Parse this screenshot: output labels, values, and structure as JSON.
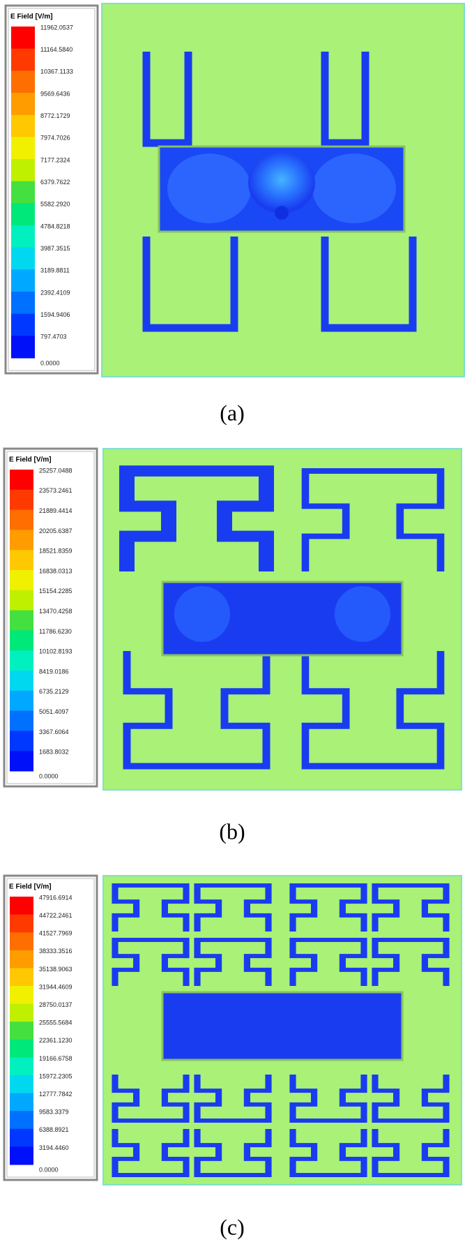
{
  "panels": [
    {
      "legend": {
        "title": "E Field [V/m]",
        "labels": [
          "11962.0537",
          "11164.5840",
          "10367.1133",
          "9569.6436",
          "8772.1729",
          "7974.7026",
          "7177.2324",
          "6379.7622",
          "5582.2920",
          "4784.8218",
          "3987.3515",
          "3189.8811",
          "2392.4109",
          "1594.9406",
          "797.4703",
          "0.0000"
        ]
      },
      "caption": "(a)"
    },
    {
      "legend": {
        "title": "E Field [V/m]",
        "labels": [
          "25257.0488",
          "23573.2461",
          "21889.4414",
          "20205.6387",
          "18521.8359",
          "16838.0313",
          "15154.2285",
          "13470.4258",
          "11786.6230",
          "10102.8193",
          "8419.0186",
          "6735.2129",
          "5051.4097",
          "3367.6064",
          "1683.8032",
          "0.0000"
        ]
      },
      "caption": "(b)"
    },
    {
      "legend": {
        "title": "E Field [V/m]",
        "labels": [
          "47916.6914",
          "44722.2461",
          "41527.7969",
          "38333.3516",
          "35138.9063",
          "31944.4609",
          "28750.0137",
          "25555.5684",
          "22361.1230",
          "19166.6758",
          "15972.2305",
          "12777.7842",
          "9583.3379",
          "6388.8921",
          "3194.4460",
          "0.0000"
        ]
      },
      "caption": "(c)"
    }
  ]
}
